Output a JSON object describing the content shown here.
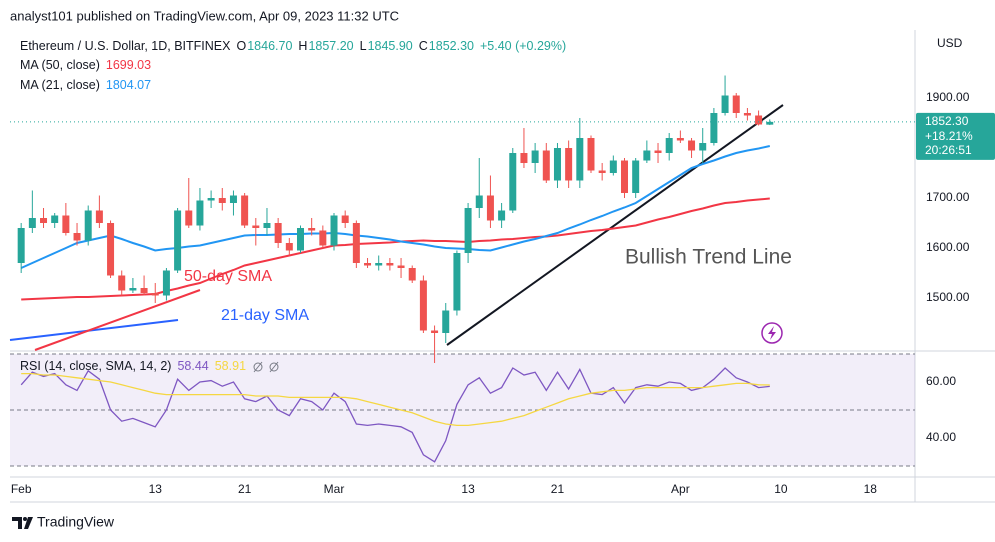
{
  "header": {
    "published": "analyst101 published on TradingView.com, Apr 09, 2023 11:32 UTC"
  },
  "chart_data": {
    "type": "candlestick",
    "title": "Ethereum / U.S. Dollar, 1D, BITFINEX",
    "legend": [
      {
        "key": "O",
        "label": "1846.70"
      },
      {
        "key": "H",
        "label": "1857.20"
      },
      {
        "key": "L",
        "label": "1845.90"
      },
      {
        "key": "C",
        "label": "1852.30"
      }
    ],
    "change": "+5.40 (+0.29%)",
    "currency": "USD",
    "up_color": "#26a69a",
    "down_color": "#ef5350",
    "open": [
      1570,
      1640,
      1660,
      1650,
      1665,
      1630,
      1615,
      1675,
      1650,
      1545,
      1515,
      1520,
      1510,
      1505,
      1555,
      1675,
      1645,
      1695,
      1700,
      1690,
      1705,
      1645,
      1640,
      1650,
      1610,
      1595,
      1640,
      1635,
      1605,
      1665,
      1650,
      1570,
      1565,
      1570,
      1565,
      1560,
      1535,
      1435,
      1430,
      1475,
      1590,
      1680,
      1705,
      1655,
      1675,
      1790,
      1770,
      1795,
      1735,
      1800,
      1735,
      1820,
      1755,
      1750,
      1775,
      1710,
      1775,
      1795,
      1790,
      1820,
      1815,
      1795,
      1810,
      1870,
      1905,
      1870,
      1865,
      1846.7
    ],
    "high": [
      1650,
      1715,
      1680,
      1670,
      1690,
      1650,
      1685,
      1705,
      1655,
      1555,
      1540,
      1545,
      1530,
      1560,
      1680,
      1740,
      1720,
      1715,
      1720,
      1715,
      1710,
      1660,
      1680,
      1660,
      1620,
      1645,
      1660,
      1645,
      1670,
      1675,
      1655,
      1580,
      1585,
      1580,
      1580,
      1565,
      1545,
      1445,
      1490,
      1595,
      1690,
      1780,
      1745,
      1690,
      1800,
      1840,
      1810,
      1810,
      1810,
      1815,
      1860,
      1825,
      1770,
      1785,
      1780,
      1780,
      1815,
      1810,
      1830,
      1835,
      1820,
      1840,
      1880,
      1945,
      1910,
      1880,
      1875,
      1857.2
    ],
    "low": [
      1550,
      1630,
      1640,
      1640,
      1625,
      1605,
      1605,
      1640,
      1540,
      1505,
      1510,
      1505,
      1490,
      1495,
      1550,
      1640,
      1635,
      1680,
      1675,
      1665,
      1640,
      1605,
      1625,
      1600,
      1585,
      1590,
      1625,
      1600,
      1595,
      1640,
      1560,
      1560,
      1555,
      1555,
      1540,
      1530,
      1430,
      1370,
      1410,
      1465,
      1570,
      1660,
      1640,
      1640,
      1670,
      1760,
      1750,
      1730,
      1720,
      1720,
      1720,
      1750,
      1735,
      1745,
      1700,
      1700,
      1770,
      1770,
      1775,
      1810,
      1780,
      1770,
      1805,
      1865,
      1860,
      1855,
      1845,
      1845.9
    ],
    "close": [
      1640,
      1660,
      1650,
      1665,
      1630,
      1615,
      1675,
      1650,
      1545,
      1515,
      1520,
      1510,
      1505,
      1555,
      1675,
      1645,
      1695,
      1700,
      1690,
      1705,
      1645,
      1640,
      1650,
      1610,
      1595,
      1640,
      1635,
      1605,
      1665,
      1650,
      1570,
      1565,
      1570,
      1565,
      1560,
      1535,
      1435,
      1430,
      1475,
      1590,
      1680,
      1705,
      1655,
      1675,
      1790,
      1770,
      1795,
      1735,
      1800,
      1735,
      1820,
      1755,
      1750,
      1775,
      1710,
      1775,
      1795,
      1790,
      1820,
      1815,
      1795,
      1810,
      1870,
      1905,
      1870,
      1865,
      1847,
      1852.3
    ],
    "overlays": [
      {
        "name": "MA (50, close)",
        "color": "#f23645",
        "value_label": "1699.03",
        "values": [
          1497,
          1498,
          1499,
          1500,
          1501,
          1502,
          1502,
          1503,
          1504,
          1505,
          1506,
          1507,
          1508,
          1514,
          1519,
          1525,
          1530,
          1539,
          1548,
          1556,
          1565,
          1570,
          1575,
          1580,
          1585,
          1590,
          1595,
          1600,
          1605,
          1606,
          1608,
          1609,
          1610,
          1611,
          1613,
          1614,
          1615,
          1614,
          1614,
          1613,
          1612,
          1614,
          1615,
          1617,
          1618,
          1620,
          1622,
          1623,
          1625,
          1628,
          1631,
          1634,
          1636,
          1639,
          1642,
          1645,
          1651,
          1657,
          1662,
          1668,
          1674,
          1679,
          1685,
          1690,
          1692,
          1695,
          1697,
          1699.03
        ]
      },
      {
        "name": "MA (21, close)",
        "color": "#2196f3",
        "value_label": "1804.07",
        "values": [
          1560,
          1570,
          1580,
          1590,
          1600,
          1610,
          1615,
          1620,
          1625,
          1618,
          1610,
          1603,
          1595,
          1598,
          1600,
          1603,
          1605,
          1610,
          1615,
          1620,
          1625,
          1626,
          1626,
          1627,
          1628,
          1628,
          1629,
          1629,
          1630,
          1628,
          1625,
          1623,
          1620,
          1617,
          1613,
          1610,
          1607,
          1603,
          1600,
          1599,
          1598,
          1596,
          1595,
          1601,
          1607,
          1613,
          1618,
          1624,
          1630,
          1639,
          1647,
          1656,
          1664,
          1673,
          1681,
          1690,
          1704,
          1718,
          1732,
          1746,
          1760,
          1768,
          1775,
          1783,
          1790,
          1795,
          1799,
          1804.07
        ]
      }
    ],
    "xlim": [
      -1,
      80
    ],
    "xticks": [
      {
        "value": 0,
        "label": "Feb"
      },
      {
        "value": 12,
        "label": "13"
      },
      {
        "value": 20,
        "label": "21"
      },
      {
        "value": 28,
        "label": "Mar"
      },
      {
        "value": 40,
        "label": "13"
      },
      {
        "value": 48,
        "label": "21"
      },
      {
        "value": 59,
        "label": "Apr"
      },
      {
        "value": 68,
        "label": "10"
      },
      {
        "value": 76,
        "label": "18"
      }
    ],
    "ylim": [
      1396,
      2036
    ],
    "yticks": [
      {
        "value": 1500,
        "label": "1500.00"
      },
      {
        "value": 1600,
        "label": "1600.00"
      },
      {
        "value": 1700,
        "label": "1700.00"
      },
      {
        "value": 1900,
        "label": "1900.00"
      }
    ],
    "last_price": {
      "price": "1852.30",
      "change": "+18.21%",
      "countdown": "20:26:51",
      "color": "#26a69a"
    },
    "annotations": [
      {
        "text": "50-day SMA",
        "color": "#f23645"
      },
      {
        "text": "21-day SMA",
        "color": "#2962ff"
      },
      {
        "text": "Bullish Trend Line",
        "color": "#555555"
      }
    ],
    "rsi": {
      "title": "RSI (14, close, SMA, 14, 2)",
      "series": [
        {
          "color": "#7e57c2",
          "value_label": "58.44",
          "values": [
            59,
            63.5,
            62,
            63,
            59,
            57,
            64,
            61,
            50,
            46,
            47,
            45.5,
            44,
            50,
            61,
            57,
            60,
            60.5,
            58.5,
            60,
            54,
            53,
            55,
            50,
            48,
            54,
            53,
            50,
            56,
            53,
            45,
            44.5,
            45,
            44.5,
            44,
            42,
            34,
            31.5,
            39,
            52,
            59,
            61.5,
            56,
            58,
            65,
            62.5,
            63.5,
            57,
            63.5,
            57.5,
            64.5,
            56,
            55.5,
            58,
            52.5,
            58,
            59,
            58.5,
            60,
            59.5,
            57,
            58,
            61,
            65,
            61.5,
            60,
            58,
            58.44
          ]
        },
        {
          "color": "#f5d742",
          "value_label": "58.91",
          "values": [
            63,
            63,
            62.5,
            62.5,
            62,
            61.5,
            61,
            60.5,
            60,
            59,
            58,
            57,
            56,
            55.5,
            55.5,
            55.5,
            55.5,
            55.5,
            55.5,
            55.5,
            55.5,
            55,
            55,
            55,
            54.5,
            54.5,
            54.5,
            54.5,
            54.5,
            54.5,
            54,
            53,
            52,
            51,
            50,
            49,
            47.5,
            46,
            45,
            44.5,
            44.5,
            45,
            45.5,
            46,
            47,
            48,
            49.5,
            51,
            52.5,
            54,
            55,
            56,
            56.5,
            57,
            57,
            57.5,
            58,
            58,
            58,
            58,
            58,
            58,
            58.5,
            59,
            59.5,
            59.5,
            59,
            58.91
          ]
        }
      ],
      "ylim": [
        26.07,
        70.71
      ],
      "yticks": [
        {
          "value": 40,
          "label": "40.00"
        },
        {
          "value": 60,
          "label": "60.00"
        }
      ],
      "bands": [
        70,
        50,
        30
      ]
    }
  },
  "footer": {
    "brand": "TradingView"
  }
}
